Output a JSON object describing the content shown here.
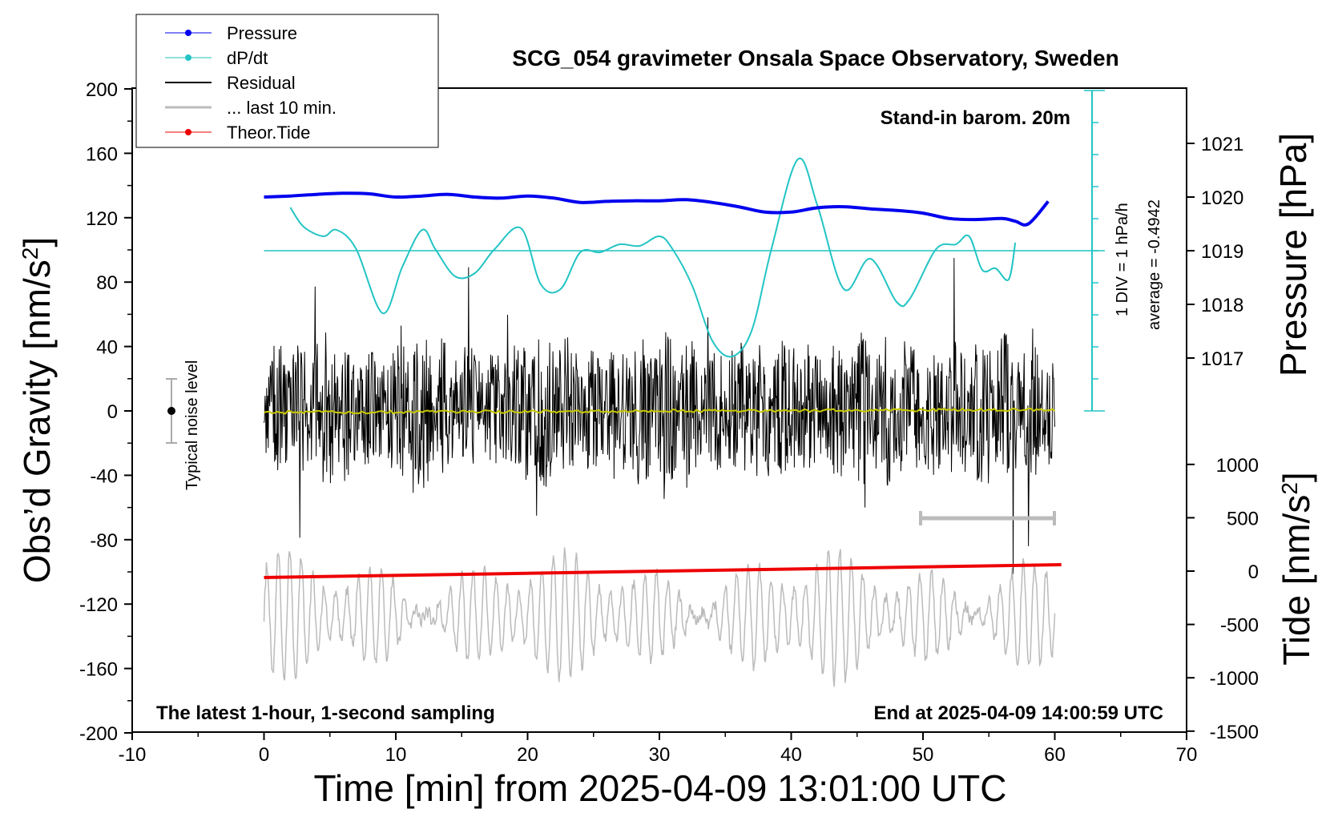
{
  "chart_data": {
    "type": "line",
    "title": "SCG_054 gravimeter Onsala Space Observatory, Sweden",
    "xlabel": "Time [min] from 2025-04-09 13:01:00 UTC",
    "ylabel_left_main": "Obs’d Gravity [nm/s",
    "ylabel_left_sup": "2",
    "ylabel_left_close": "]",
    "ylabel_right_top": "Pressure [hPa]",
    "ylabel_right_bottom_main": "Tide [nm/s",
    "ylabel_right_bottom_sup": "2",
    "ylabel_right_bottom_close": "]",
    "xlim": [
      -10,
      70
    ],
    "xticks": [
      "-10",
      "0",
      "10",
      "20",
      "30",
      "40",
      "50",
      "60",
      "70"
    ],
    "ylim_gravity": [
      -200,
      200
    ],
    "yticks_gravity": [
      "200",
      "160",
      "120",
      "80",
      "40",
      "0",
      "-40",
      "-80",
      "-120",
      "-160",
      "-200"
    ],
    "yticks_pressure": [
      "1021",
      "1020",
      "1019",
      "1018",
      "1017"
    ],
    "yticks_tide": [
      "1000",
      "500",
      "0",
      "-500",
      "-1000",
      "-1500"
    ],
    "annotations": {
      "barometer": "Stand-in barom. 20m",
      "bottom_left": "The latest 1-hour, 1-second sampling",
      "bottom_right": "End at 2025-04-09 14:00:59 UTC",
      "noise": "Typical noise level",
      "dpdt_scale": "1 DIV = 1 hPa/h",
      "dpdt_average": "average = -0.4942"
    },
    "legend": [
      "Pressure",
      "dP/dt",
      "Residual",
      "... last 10 min.",
      "Theor.Tide"
    ],
    "colors": {
      "pressure": "#0000ee",
      "dpdt": "#22c4c4",
      "residual": "#000000",
      "last10": "#bbbbbb",
      "tide": "#ee0000",
      "smooth": "#c8c800"
    },
    "series": [
      {
        "name": "Pressure",
        "unit": "hPa",
        "x": [
          0,
          2,
          4,
          6,
          8,
          10,
          12,
          14,
          16,
          18,
          20,
          22,
          24,
          26,
          28,
          30,
          32,
          34,
          36,
          38,
          40,
          42,
          44,
          46,
          48,
          50,
          52,
          54,
          56,
          57,
          58,
          59.5
        ],
        "values": [
          1020.0,
          1020.02,
          1020.05,
          1020.07,
          1020.06,
          1020.0,
          1020.02,
          1020.05,
          1020.0,
          1019.98,
          1020.02,
          1019.98,
          1019.9,
          1019.92,
          1019.93,
          1019.93,
          1019.95,
          1019.9,
          1019.82,
          1019.72,
          1019.72,
          1019.8,
          1019.82,
          1019.78,
          1019.75,
          1019.7,
          1019.6,
          1019.58,
          1019.6,
          1019.55,
          1019.5,
          1019.92
        ]
      },
      {
        "name": "dP/dt",
        "unit": "hPa/h",
        "x": [
          2,
          3,
          4.5,
          5.5,
          7,
          9,
          10.5,
          12,
          13,
          14.5,
          16,
          17.5,
          19.5,
          21,
          22.5,
          24,
          25.5,
          27,
          28.5,
          30,
          31,
          32.5,
          34,
          35.5,
          37,
          38.5,
          40.5,
          42,
          44,
          46,
          48,
          49,
          51,
          52.5,
          53.5,
          54.5,
          55.5,
          56.5,
          57
        ],
        "values": [
          1.35,
          0.75,
          0.45,
          0.65,
          0.05,
          -1.95,
          -0.5,
          0.65,
          0.05,
          -0.8,
          -0.7,
          0.05,
          0.7,
          -1.05,
          -1.2,
          -0.05,
          -0.05,
          0.2,
          0.15,
          0.45,
          0.05,
          -1.1,
          -2.8,
          -3.3,
          -2.5,
          0.05,
          2.85,
          1.4,
          -1.2,
          -0.25,
          -1.6,
          -1.5,
          0.05,
          0.2,
          0.45,
          -0.6,
          -0.55,
          -0.9,
          0.25
        ]
      },
      {
        "name": "Theor.Tide",
        "unit": "nm/s2",
        "x": [
          0,
          60.5
        ],
        "values": [
          -60,
          60
        ]
      }
    ]
  }
}
